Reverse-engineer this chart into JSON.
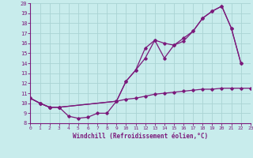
{
  "xlabel": "Windchill (Refroidissement éolien,°C)",
  "bg_color": "#c8ecec",
  "line_color": "#7b1a7b",
  "grid_color": "#aad4d4",
  "xlim": [
    0,
    23
  ],
  "ylim": [
    8,
    20
  ],
  "xticks": [
    0,
    1,
    2,
    3,
    4,
    5,
    6,
    7,
    8,
    9,
    10,
    11,
    12,
    13,
    14,
    15,
    16,
    17,
    18,
    19,
    20,
    21,
    22,
    23
  ],
  "yticks": [
    8,
    9,
    10,
    11,
    12,
    13,
    14,
    15,
    16,
    17,
    18,
    19,
    20
  ],
  "line1_x": [
    0,
    1,
    2,
    3,
    4,
    5,
    6,
    7,
    8,
    9,
    10,
    11,
    12,
    13,
    14,
    15,
    16,
    17,
    18,
    19,
    20,
    21,
    22
  ],
  "line1_y": [
    10.5,
    10.0,
    9.6,
    9.6,
    8.7,
    8.5,
    8.6,
    9.0,
    9.0,
    10.2,
    12.2,
    13.3,
    15.5,
    16.3,
    16.0,
    15.8,
    16.2,
    17.2,
    18.5,
    19.2,
    19.7,
    17.5,
    14.0
  ],
  "line2_x": [
    0,
    1,
    2,
    3,
    9,
    10,
    11,
    12,
    13,
    14,
    15,
    16,
    17,
    18,
    19,
    20,
    21,
    22,
    23
  ],
  "line2_y": [
    10.5,
    10.0,
    9.6,
    9.6,
    10.2,
    10.4,
    10.5,
    10.7,
    10.9,
    11.0,
    11.1,
    11.2,
    11.3,
    11.4,
    11.4,
    11.5,
    11.5,
    11.5,
    11.5
  ],
  "line3_x": [
    0,
    1,
    2,
    3,
    9,
    10,
    11,
    12,
    13,
    14,
    15,
    16,
    17,
    18,
    19,
    20,
    21,
    22
  ],
  "line3_y": [
    10.5,
    10.0,
    9.6,
    9.6,
    10.2,
    12.2,
    13.3,
    14.5,
    16.3,
    14.5,
    15.8,
    16.5,
    17.2,
    18.5,
    19.2,
    19.7,
    17.5,
    14.0
  ]
}
